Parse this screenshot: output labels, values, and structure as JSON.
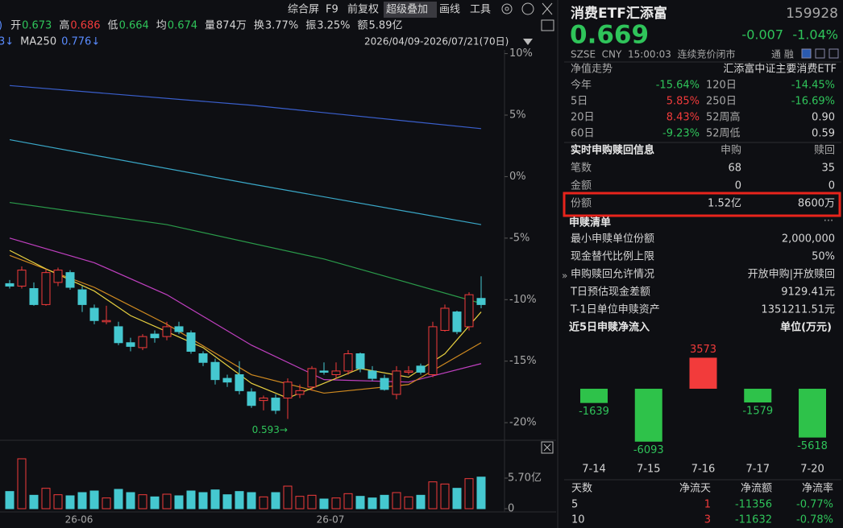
{
  "toolbar": [
    "综合屏",
    "F9",
    "前复权",
    "超级叠加",
    "画线",
    "工具"
  ],
  "quote_bar": {
    "prefix": ")",
    "items": [
      {
        "label": "开",
        "value": "0.673",
        "color": "#2fc45a"
      },
      {
        "label": "高",
        "value": "0.686",
        "color": "#f23b3b"
      },
      {
        "label": "低",
        "value": "0.664",
        "color": "#2fc45a"
      },
      {
        "label": "均",
        "value": "0.674",
        "color": "#2fc45a"
      },
      {
        "label": "量",
        "value": "874万",
        "color": "#d6d6d6"
      },
      {
        "label": "换",
        "value": "3.77%",
        "color": "#d6d6d6"
      },
      {
        "label": "振",
        "value": "3.25%",
        "color": "#d6d6d6"
      },
      {
        "label": "额",
        "value": "5.89亿",
        "color": "#d6d6d6"
      }
    ]
  },
  "ma_bar": {
    "fragment": "3↓",
    "label": "MA250",
    "value": "0.776↓"
  },
  "date_range": "2026/04/09-2026/07/21(70日)",
  "chart_data": [
    {
      "type": "candlestick",
      "ylim": [
        -21.3,
        10.3
      ],
      "yticks": [
        {
          "value": 10,
          "label": "10%"
        },
        {
          "value": 5,
          "label": "5%"
        },
        {
          "value": 0,
          "label": "0%"
        },
        {
          "value": -5,
          "label": "-5%"
        },
        {
          "value": -10,
          "label": "-10%"
        },
        {
          "value": -15,
          "label": "-15%"
        },
        {
          "value": -20,
          "label": "-20%"
        }
      ],
      "up_color": "#f23b3b",
      "down_color": "#45c8d0",
      "candles": {
        "open": [
          -8.7,
          -8.9,
          -9.1,
          -10.4,
          -8.6,
          -7.8,
          -9.2,
          -10.7,
          -11.8,
          -12.2,
          -13.5,
          -13.9,
          -12.8,
          -13.0,
          -12.2,
          -12.7,
          -14.4,
          -15.1,
          -16.4,
          -16.1,
          -17.5,
          -18.2,
          -18.0,
          -18.0,
          -17.7,
          -17.1,
          -15.8,
          -16.1,
          -15.8,
          -14.4,
          -15.8,
          -16.4,
          -17.7,
          -15.9,
          -15.4,
          -16.1,
          -12.5,
          -11.0,
          -12.2,
          -9.9
        ],
        "close": [
          -8.9,
          -7.6,
          -10.4,
          -7.8,
          -7.6,
          -9.0,
          -10.4,
          -11.7,
          -11.7,
          -13.5,
          -13.8,
          -13.0,
          -13.1,
          -12.2,
          -12.6,
          -14.2,
          -15.1,
          -16.5,
          -16.7,
          -17.4,
          -18.6,
          -18.0,
          -19.0,
          -16.7,
          -17.4,
          -15.6,
          -15.9,
          -15.8,
          -14.4,
          -15.6,
          -16.4,
          -17.3,
          -15.8,
          -15.8,
          -15.9,
          -12.2,
          -10.7,
          -12.6,
          -9.6,
          -10.4
        ],
        "high": [
          -8.4,
          -7.3,
          -8.6,
          -7.5,
          -7.4,
          -7.6,
          -8.9,
          -10.4,
          -10.5,
          -11.8,
          -13.1,
          -12.8,
          -12.5,
          -11.8,
          -11.8,
          -12.5,
          -14.2,
          -14.8,
          -16.1,
          -15.0,
          -17.2,
          -17.8,
          -17.7,
          -16.4,
          -16.9,
          -15.4,
          -15.1,
          -15.1,
          -14.1,
          -14.3,
          -15.4,
          -16.1,
          -15.4,
          -15.4,
          -15.2,
          -11.8,
          -10.4,
          -10.9,
          -9.4,
          -8.1
        ],
        "low": [
          -9.1,
          -9.1,
          -10.5,
          -10.5,
          -8.9,
          -9.2,
          -11.0,
          -12.0,
          -12.0,
          -13.7,
          -14.2,
          -14.1,
          -13.5,
          -13.3,
          -12.8,
          -14.4,
          -15.4,
          -16.9,
          -17.1,
          -17.7,
          -18.8,
          -19.0,
          -19.3,
          -19.7,
          -18.0,
          -17.4,
          -16.1,
          -16.4,
          -16.1,
          -15.9,
          -16.6,
          -17.4,
          -18.1,
          -16.1,
          -16.1,
          -16.3,
          -12.6,
          -12.8,
          -12.5,
          -10.7
        ]
      },
      "lines": [
        {
          "color": "#3a5fcc",
          "x": [
            0,
            20,
            39
          ],
          "values": [
            7.4,
            5.8,
            3.9
          ]
        },
        {
          "color": "#3aa8c8",
          "x": [
            0,
            20,
            39
          ],
          "values": [
            3.0,
            -0.6,
            -3.9
          ]
        },
        {
          "color": "#2a9a4a",
          "x": [
            0,
            13,
            26,
            39
          ],
          "values": [
            -2.1,
            -3.9,
            -6.7,
            -10.3
          ]
        },
        {
          "color": "#c040c0",
          "x": [
            0,
            7,
            13,
            20,
            26,
            33,
            39
          ],
          "values": [
            -5.0,
            -7.0,
            -9.6,
            -13.7,
            -16.5,
            -16.7,
            -15.2
          ]
        },
        {
          "color": "#d08a20",
          "x": [
            0,
            7,
            13,
            20,
            26,
            33,
            39
          ],
          "values": [
            -6.4,
            -9.0,
            -12.0,
            -16.1,
            -17.6,
            -16.9,
            -13.5
          ]
        },
        {
          "color": "#e8d040",
          "x": [
            0,
            3,
            7,
            10,
            13,
            16,
            20,
            23,
            26,
            29,
            33,
            36,
            39
          ],
          "values": [
            -6.0,
            -7.5,
            -9.3,
            -11.3,
            -12.6,
            -13.9,
            -16.8,
            -18.0,
            -16.8,
            -15.6,
            -16.3,
            -14.4,
            -11.0
          ]
        }
      ],
      "annotation": "0.593→",
      "x_labels": [
        "26-06",
        "26-07"
      ]
    },
    {
      "type": "bar",
      "ylim": [
        0,
        10.5
      ],
      "yticks": [
        {
          "value": 5.7,
          "label": "5.70亿"
        },
        0
      ],
      "values": [
        3.2,
        9.3,
        2.5,
        3.8,
        2.6,
        2.4,
        3.0,
        3.3,
        2.0,
        3.6,
        3.0,
        2.6,
        2.2,
        2.7,
        2.4,
        3.3,
        3.0,
        3.5,
        2.6,
        3.2,
        3.0,
        2.2,
        3.0,
        4.2,
        2.3,
        2.5,
        1.8,
        2.0,
        2.8,
        2.3,
        2.0,
        2.5,
        3.0,
        2.2,
        2.5,
        5.0,
        4.6,
        3.8,
        5.6,
        5.89
      ]
    },
    {
      "type": "bar",
      "title": "近5日申赎净流入",
      "unit": "单位(万元)",
      "ylim": [
        -7600,
        5650
      ],
      "up_color": "#f23b3b",
      "down_color": "#2ec24a",
      "categories": [
        "7-14",
        "7-15",
        "7-16",
        "7-17",
        "7-20"
      ],
      "values": [
        -1639,
        -6093,
        3573,
        -1579,
        -5618
      ]
    }
  ],
  "quote": {
    "name": "消费ETF汇添富",
    "code": "159928",
    "price": "0.669",
    "change": "-0.007",
    "change_pct": "-1.04%",
    "status": "SZSE  CNY  15:00:03  连续竞价闭市",
    "tags": "通 融"
  },
  "nav": {
    "title": "净值走势",
    "fund": "汇添富中证主要消费ETF",
    "rows": [
      [
        "今年",
        "-15.64%",
        "120日",
        "-14.45%"
      ],
      [
        "5日",
        "5.85%",
        "250日",
        "-16.69%"
      ],
      [
        "20日",
        "8.43%",
        "52周高",
        "0.90"
      ],
      [
        "60日",
        "-9.23%",
        "52周低",
        "0.59"
      ]
    ]
  },
  "realtime": {
    "title": "实时申购赎回信息",
    "cols": [
      "申购",
      "赎回"
    ],
    "rows": [
      [
        "笔数",
        68,
        35
      ],
      [
        "金额",
        0,
        0
      ],
      [
        "份额",
        "1.52亿",
        "8600万"
      ]
    ],
    "more": "..."
  },
  "list": {
    "title": "申赎清单",
    "rows": [
      [
        "最小申赎单位份额",
        "2,000,000"
      ],
      [
        "现金替代比例上限",
        "50%"
      ],
      [
        "申购赎回允许情况",
        "开放申购|开放赎回"
      ],
      [
        "T日预估现金差额",
        "9129.41元"
      ],
      [
        "T-1日单位申赎资产",
        "1351211.51元"
      ]
    ]
  },
  "flow_table": {
    "header": [
      "天数",
      "净流天",
      "净流额",
      "净流率"
    ],
    "rows": [
      [
        5,
        1,
        -11356,
        "-0.77%"
      ],
      [
        10,
        3,
        -11632,
        "-0.78%"
      ]
    ]
  }
}
